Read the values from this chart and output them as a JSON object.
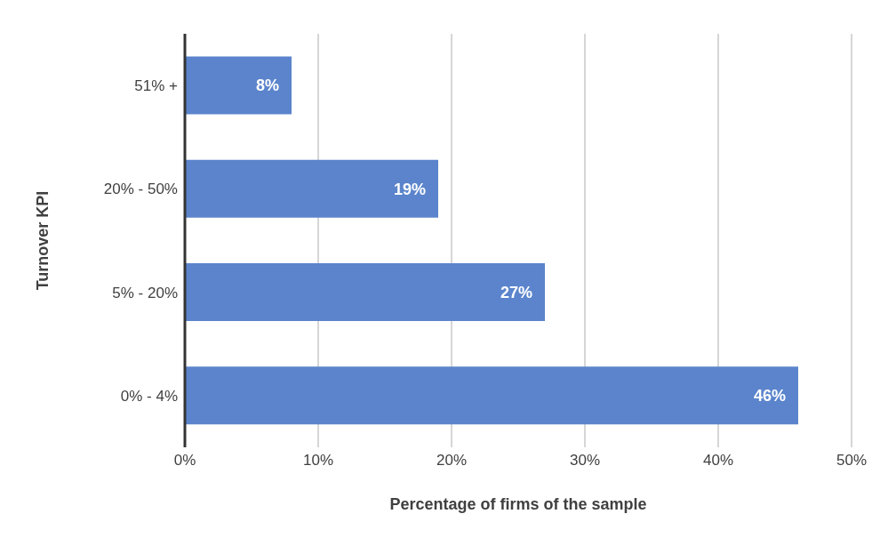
{
  "chart_data": {
    "type": "bar",
    "orientation": "horizontal",
    "categories": [
      "51% +",
      "20% - 50%",
      "5% - 20%",
      "0% - 4%"
    ],
    "values": [
      8,
      19,
      27,
      46
    ],
    "value_labels": [
      "8%",
      "19%",
      "27%",
      "46%"
    ],
    "color": "#5b84cc",
    "xlabel": "Percentage of firms of the sample",
    "ylabel": "Turnover KPI",
    "xlim": [
      0,
      50
    ],
    "xticks": [
      {
        "value": 0,
        "label": "0%"
      },
      {
        "value": 10,
        "label": "10%"
      },
      {
        "value": 20,
        "label": "20%"
      },
      {
        "value": 30,
        "label": "30%"
      },
      {
        "value": 40,
        "label": "40%"
      },
      {
        "value": 50,
        "label": "50%"
      }
    ],
    "grid": "x"
  }
}
